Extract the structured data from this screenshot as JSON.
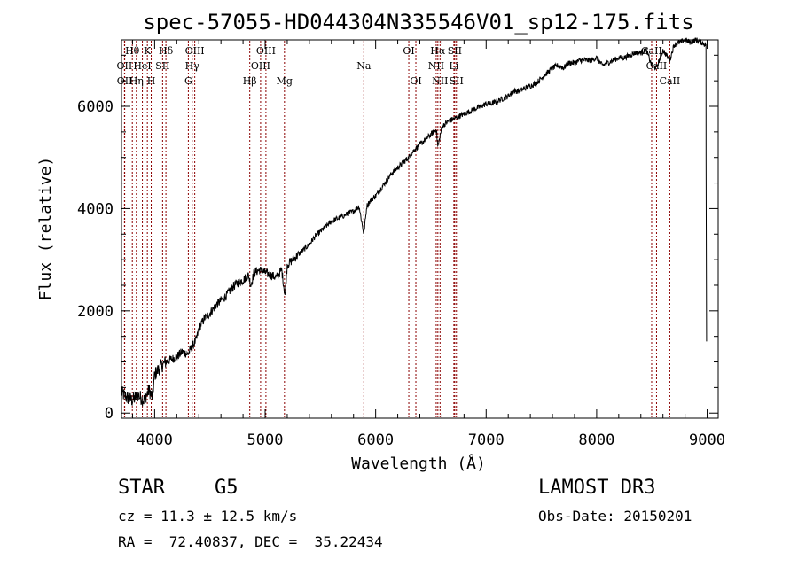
{
  "chart_data": {
    "type": "line",
    "title": "spec-57055-HD044304N335546V01_sp12-175.fits",
    "xlabel": "Wavelength (Å)",
    "ylabel": "Flux (relative)",
    "xlim": [
      3700,
      9100
    ],
    "ylim": [
      -100,
      7300
    ],
    "xticks": [
      4000,
      5000,
      6000,
      7000,
      8000,
      9000
    ],
    "xtick_labels": [
      "4000",
      "5000",
      "6000",
      "7000",
      "8000",
      "9000"
    ],
    "yticks": [
      0,
      2000,
      4000,
      6000
    ],
    "ytick_labels": [
      "0",
      "2000",
      "4000",
      "6000"
    ],
    "line_color": "#000000",
    "marker_color": "#8b0000",
    "series": [
      {
        "name": "spectrum",
        "x": [
          3700,
          3750,
          3800,
          3850,
          3900,
          3950,
          3980,
          4000,
          4050,
          4100,
          4150,
          4200,
          4250,
          4300,
          4340,
          4380,
          4400,
          4450,
          4500,
          4550,
          4600,
          4650,
          4700,
          4750,
          4800,
          4850,
          4870,
          4900,
          4950,
          5000,
          5050,
          5100,
          5150,
          5180,
          5200,
          5250,
          5300,
          5350,
          5400,
          5450,
          5500,
          5550,
          5600,
          5650,
          5700,
          5750,
          5800,
          5850,
          5893,
          5920,
          5950,
          6000,
          6050,
          6100,
          6150,
          6200,
          6250,
          6300,
          6350,
          6400,
          6450,
          6500,
          6550,
          6563,
          6600,
          6650,
          6700,
          6750,
          6800,
          6850,
          6900,
          6950,
          7000,
          7050,
          7100,
          7150,
          7200,
          7250,
          7300,
          7350,
          7400,
          7450,
          7500,
          7550,
          7600,
          7650,
          7700,
          7750,
          7800,
          7850,
          7900,
          7950,
          8000,
          8050,
          8100,
          8150,
          8200,
          8250,
          8300,
          8350,
          8400,
          8450,
          8498,
          8542,
          8600,
          8662,
          8700,
          8750,
          8800,
          8850,
          8900,
          8950,
          8990
        ],
        "y": [
          400,
          300,
          250,
          350,
          250,
          450,
          300,
          750,
          900,
          1000,
          1050,
          1100,
          1200,
          1150,
          1300,
          1450,
          1650,
          1850,
          1950,
          2100,
          2200,
          2300,
          2450,
          2550,
          2600,
          2700,
          2500,
          2750,
          2800,
          2750,
          2700,
          2650,
          2800,
          2300,
          2900,
          3000,
          3100,
          3200,
          3300,
          3450,
          3550,
          3650,
          3750,
          3800,
          3850,
          3900,
          3950,
          4050,
          3500,
          4050,
          4150,
          4250,
          4400,
          4550,
          4700,
          4800,
          4900,
          5000,
          5150,
          5250,
          5350,
          5450,
          5550,
          5200,
          5600,
          5700,
          5750,
          5800,
          5850,
          5900,
          5950,
          6000,
          6050,
          6050,
          6100,
          6150,
          6200,
          6300,
          6300,
          6350,
          6400,
          6450,
          6550,
          6650,
          6750,
          6800,
          6750,
          6850,
          6850,
          6900,
          6900,
          6900,
          6950,
          6800,
          6850,
          6900,
          6950,
          6950,
          7000,
          7050,
          7050,
          7100,
          6800,
          6750,
          7100,
          6900,
          7200,
          7250,
          7300,
          7250,
          7300,
          7250,
          7200
        ]
      }
    ],
    "line_markers": [
      {
        "label": "Hθ",
        "wavelength": 3798,
        "row": 1
      },
      {
        "label": "OII",
        "wavelength": 3727,
        "row": 2
      },
      {
        "label": "OII",
        "wavelength": 3729,
        "row": 3
      },
      {
        "label": "Hη",
        "wavelength": 3835,
        "row": 3
      },
      {
        "label": "HeI",
        "wavelength": 3889,
        "row": 2
      },
      {
        "label": "K",
        "wavelength": 3934,
        "row": 1
      },
      {
        "label": "H",
        "wavelength": 3969,
        "row": 3
      },
      {
        "label": "SII",
        "wavelength": 4072,
        "row": 2
      },
      {
        "label": "Hδ",
        "wavelength": 4102,
        "row": 1
      },
      {
        "label": "OIII",
        "wavelength": 4363,
        "row": 1
      },
      {
        "label": "Hγ",
        "wavelength": 4340,
        "row": 2
      },
      {
        "label": "G",
        "wavelength": 4305,
        "row": 3
      },
      {
        "label": "Hβ",
        "wavelength": 4861,
        "row": 3
      },
      {
        "label": "OIII",
        "wavelength": 4959,
        "row": 2
      },
      {
        "label": "OIII",
        "wavelength": 5007,
        "row": 1
      },
      {
        "label": "Mg",
        "wavelength": 5175,
        "row": 3
      },
      {
        "label": "Na",
        "wavelength": 5893,
        "row": 2
      },
      {
        "label": "OI",
        "wavelength": 6300,
        "row": 1
      },
      {
        "label": "OI",
        "wavelength": 6364,
        "row": 3
      },
      {
        "label": "NII",
        "wavelength": 6548,
        "row": 2
      },
      {
        "label": "Hα",
        "wavelength": 6563,
        "row": 1
      },
      {
        "label": "NII",
        "wavelength": 6583,
        "row": 3
      },
      {
        "label": "SII",
        "wavelength": 6716,
        "row": 1
      },
      {
        "label": "Li",
        "wavelength": 6708,
        "row": 2
      },
      {
        "label": "SII",
        "wavelength": 6731,
        "row": 3
      },
      {
        "label": "CaII",
        "wavelength": 8498,
        "row": 1
      },
      {
        "label": "CaII",
        "wavelength": 8542,
        "row": 2
      },
      {
        "label": "CaII",
        "wavelength": 8662,
        "row": 3
      }
    ]
  },
  "info": {
    "class_label": "STAR",
    "subclass": "G5",
    "survey": "LAMOST DR3",
    "redshift": "cz = 11.3 ± 12.5 km/s",
    "obs_date": "Obs-Date: 20150201",
    "coords": "RA =  72.40837, DEC =  35.22434"
  }
}
